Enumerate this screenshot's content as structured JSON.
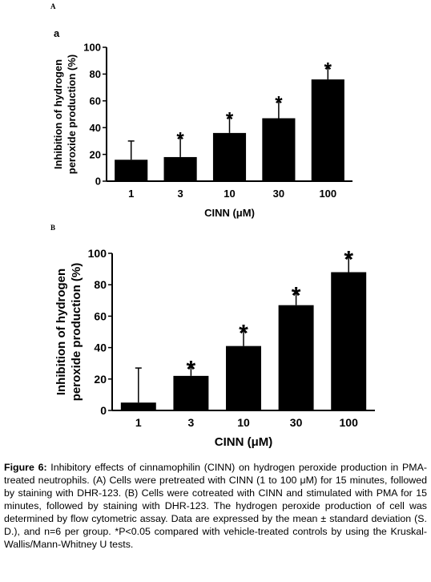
{
  "panel_labels": [
    "A",
    "B"
  ],
  "chart_data": [
    {
      "type": "bar",
      "subpanel_label": "a",
      "categories": [
        "1",
        "3",
        "10",
        "30",
        "100"
      ],
      "values": [
        16,
        18,
        36,
        47,
        76
      ],
      "errors": [
        14,
        16,
        13,
        14,
        10
      ],
      "significant": [
        false,
        true,
        true,
        true,
        true
      ],
      "significance_marker": "*",
      "ylabel_lines": [
        "Inhibition of hydrogen",
        "peroxide production (%)"
      ],
      "xlabel": "CINN (μM)",
      "ylim": [
        0,
        100
      ],
      "yticks": [
        0,
        20,
        40,
        60,
        80,
        100
      ],
      "bar_color": "#000000",
      "grid": false
    },
    {
      "type": "bar",
      "categories": [
        "1",
        "3",
        "10",
        "30",
        "100"
      ],
      "values": [
        5,
        22,
        41,
        67,
        88
      ],
      "errors": [
        22,
        7,
        11,
        9,
        11
      ],
      "significant": [
        false,
        true,
        true,
        true,
        true
      ],
      "significance_marker": "*",
      "ylabel_lines": [
        "Inhibition of hydrogen",
        "peroxide production (%)"
      ],
      "xlabel": "CINN (μM)",
      "ylim": [
        0,
        100
      ],
      "yticks": [
        0,
        20,
        40,
        60,
        80,
        100
      ],
      "bar_color": "#000000",
      "grid": false
    }
  ],
  "caption": {
    "label": "Figure 6:",
    "text": "Inhibitory effects of cinnamophilin (CINN) on hydrogen peroxide production in PMA-treated neutrophils. (A) Cells were pretreated with CINN (1 to 100 μM) for 15 minutes, followed by staining with DHR-123. (B) Cells were cotreated with CINN and stimulated with PMA for 15 minutes, followed by staining with DHR-123. The hydrogen peroxide production of cell was determined by flow cytometric assay. Data are expressed by the mean ± standard deviation (S. D.), and n=6 per group. *P<0.05 compared with vehicle-treated controls by using the Kruskal-Wallis/Mann-Whitney U tests."
  }
}
